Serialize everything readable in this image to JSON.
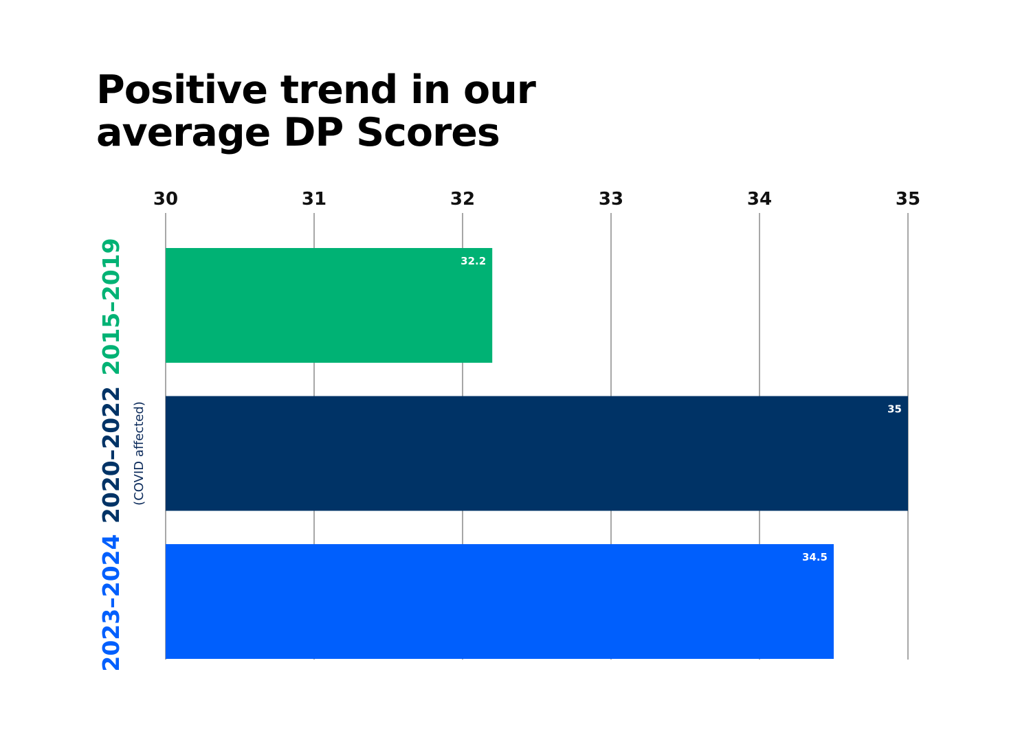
{
  "title_lines": [
    "Positive trend in our",
    "average DP Scores"
  ],
  "chart_data": {
    "type": "bar",
    "orientation": "horizontal",
    "title": "Positive trend in our average DP Scores",
    "categories": [
      "2015–2019",
      "2020–2022",
      "2023–2024"
    ],
    "notes": [
      "",
      "(COVID affected)",
      ""
    ],
    "values": [
      32.2,
      35,
      34.5
    ],
    "value_labels": [
      "32.2",
      "35",
      "34.5"
    ],
    "colors": [
      "#00b274",
      "#003366",
      "#005ffd"
    ],
    "xlim": [
      30,
      35
    ],
    "xticks": [
      30,
      31,
      32,
      33,
      34,
      35
    ],
    "xtick_labels": [
      "30",
      "31",
      "32",
      "33",
      "34",
      "35"
    ],
    "grid": true,
    "xlabel": "",
    "ylabel": ""
  }
}
